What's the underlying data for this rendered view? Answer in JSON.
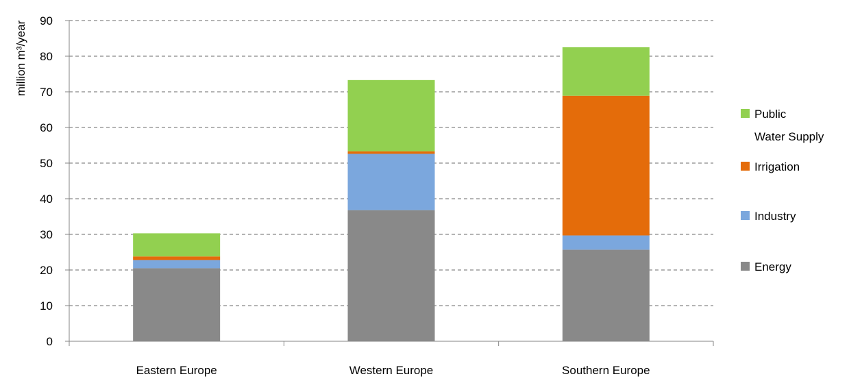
{
  "chart_data": {
    "type": "bar",
    "stacked": true,
    "title": "",
    "xlabel": "",
    "ylabel": "million m³/year",
    "ylim": [
      0,
      90
    ],
    "yticks": [
      0,
      10,
      20,
      30,
      40,
      50,
      60,
      70,
      80,
      90
    ],
    "grid": true,
    "legend_position": "right",
    "categories": [
      "Eastern Europe",
      "Western Europe",
      "Southern Europe"
    ],
    "series": [
      {
        "name": "Energy",
        "color": "#898989",
        "values": [
          20.5,
          36.8,
          25.7
        ]
      },
      {
        "name": "Industry",
        "color": "#7ba7dd",
        "values": [
          2.3,
          15.8,
          4.0
        ]
      },
      {
        "name": "Irrigation",
        "color": "#e46c0a",
        "values": [
          1.0,
          0.7,
          39.2
        ]
      },
      {
        "name": "Public Water Supply",
        "color": "#92d050",
        "values": [
          6.5,
          20.0,
          13.6
        ]
      }
    ],
    "legend": [
      {
        "series": "Public Water Supply",
        "lines": [
          "Public",
          "Water Supply"
        ],
        "color": "#92d050"
      },
      {
        "series": "Irrigation",
        "lines": [
          "Irrigation"
        ],
        "color": "#e46c0a"
      },
      {
        "series": "Industry",
        "lines": [
          "Industry"
        ],
        "color": "#7ba7dd"
      },
      {
        "series": "Energy",
        "lines": [
          "Energy"
        ],
        "color": "#898989"
      }
    ]
  }
}
